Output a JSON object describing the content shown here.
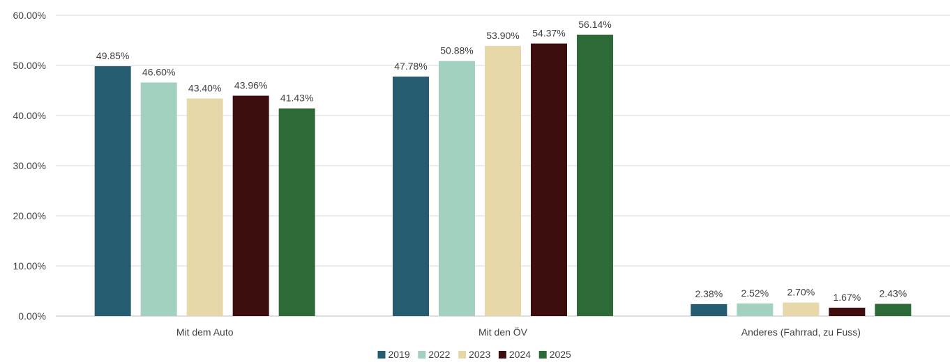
{
  "chart_data": {
    "type": "bar",
    "title": "",
    "xlabel": "",
    "ylabel": "",
    "categories": [
      "Mit dem Auto",
      "Mit den ÖV",
      "Anderes (Fahrrad, zu Fuss)"
    ],
    "series": [
      {
        "name": "2019",
        "color": "#265c70",
        "values": [
          49.85,
          47.78,
          2.38
        ],
        "labels": [
          "49.85%",
          "47.78%",
          "2.38%"
        ]
      },
      {
        "name": "2022",
        "color": "#a2d1c0",
        "values": [
          46.6,
          50.88,
          2.52
        ],
        "labels": [
          "46.60%",
          "50.88%",
          "2.52%"
        ]
      },
      {
        "name": "2023",
        "color": "#e7d8aa",
        "values": [
          43.4,
          53.9,
          2.7
        ],
        "labels": [
          "43.40%",
          "53.90%",
          "2.70%"
        ]
      },
      {
        "name": "2024",
        "color": "#3e0e0f",
        "values": [
          43.96,
          54.37,
          1.67
        ],
        "labels": [
          "43.96%",
          "54.37%",
          "1.67%"
        ]
      },
      {
        "name": "2025",
        "color": "#2d6a37",
        "values": [
          41.43,
          56.14,
          2.43
        ],
        "labels": [
          "41.43%",
          "56.14%",
          "2.43%"
        ]
      }
    ],
    "ylim": [
      0,
      60
    ],
    "yticks": [
      0,
      10,
      20,
      30,
      40,
      50,
      60
    ],
    "ytick_labels": [
      "0.00%",
      "10.00%",
      "20.00%",
      "30.00%",
      "40.00%",
      "50.00%",
      "60.00%"
    ],
    "grid": true,
    "legend_position": "bottom-center"
  }
}
